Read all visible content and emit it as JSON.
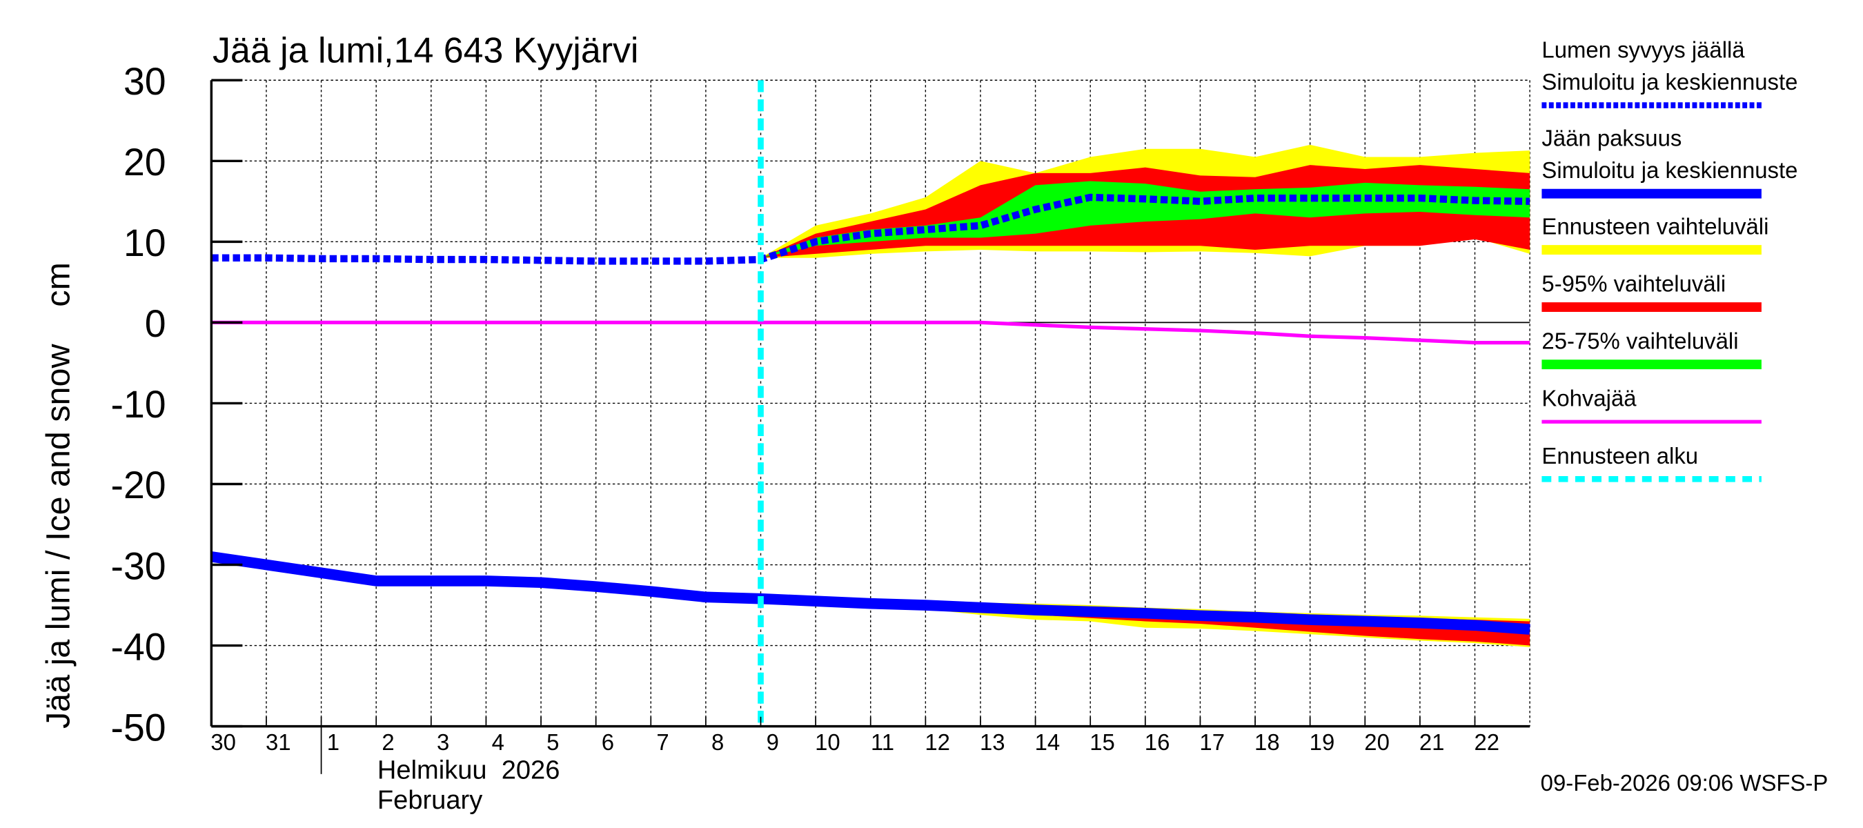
{
  "chart_data": {
    "type": "area",
    "title": "Jää ja lumi,14 643 Kyyjärvi",
    "ylabel": "Jää ja lumi / Ice and snow    cm",
    "xlabel_fi": "Helmikuu  2026",
    "xlabel_en": "February",
    "ylim": [
      -50,
      30
    ],
    "yticks": [
      "30",
      "20",
      "10",
      "0",
      "-10",
      "-20",
      "-30",
      "-40",
      "-50"
    ],
    "grid": true,
    "legend_position": "right",
    "x_dates": [
      "2026-01-30",
      "2026-01-31",
      "2026-02-01",
      "2026-02-02",
      "2026-02-03",
      "2026-02-04",
      "2026-02-05",
      "2026-02-06",
      "2026-02-07",
      "2026-02-08",
      "2026-02-09",
      "2026-02-10",
      "2026-02-11",
      "2026-02-12",
      "2026-02-13",
      "2026-02-14",
      "2026-02-15",
      "2026-02-16",
      "2026-02-17",
      "2026-02-18",
      "2026-02-19",
      "2026-02-20",
      "2026-02-21",
      "2026-02-22",
      "2026-02-23"
    ],
    "xtick_labels": [
      "30",
      "31",
      "1",
      "2",
      "3",
      "4",
      "5",
      "6",
      "7",
      "8",
      "9",
      "10",
      "11",
      "12",
      "13",
      "14",
      "15",
      "16",
      "17",
      "18",
      "19",
      "20",
      "21",
      "22"
    ],
    "forecast_start": "2026-02-09",
    "snow_depth": [
      8,
      8,
      7.9,
      7.9,
      7.8,
      7.8,
      7.7,
      7.6,
      7.6,
      7.6,
      7.8,
      10,
      11,
      11.5,
      12,
      14,
      15.5,
      15.3,
      15,
      15.4,
      15.4,
      15.4,
      15.4,
      15.1,
      15
    ],
    "snow_bands_from": "2026-02-09",
    "snow_bands": {
      "yellow_max": [
        8,
        12,
        13.5,
        15.5,
        20,
        18.5,
        20.5,
        21.5,
        21.5,
        20.5,
        22,
        20.5,
        20.5,
        21,
        21.3
      ],
      "red_max": [
        8,
        11,
        12.5,
        14,
        17,
        18.5,
        18.5,
        19.2,
        18.2,
        18,
        19.5,
        19,
        19.5,
        19,
        18.5
      ],
      "green_max": [
        8,
        10.5,
        11.5,
        12,
        13,
        17,
        17.5,
        17.2,
        16.2,
        16.5,
        16.7,
        17.3,
        17,
        16.8,
        16.5
      ],
      "green_min": [
        8,
        9.5,
        10,
        10.5,
        10.5,
        11,
        12,
        12.5,
        12.8,
        13.5,
        13,
        13.5,
        13.7,
        13.3,
        13
      ],
      "red_min": [
        8,
        8.5,
        9,
        9.5,
        9.5,
        9.5,
        9.5,
        9.5,
        9.5,
        9,
        9.5,
        9.5,
        9.5,
        10.3,
        9
      ],
      "yellow_min": [
        8,
        8,
        8.5,
        8.8,
        9,
        8.8,
        8.8,
        8.7,
        8.8,
        8.6,
        8.2,
        9.5,
        9.5,
        10.5,
        8.5
      ]
    },
    "ice_thickness": [
      -29,
      -30,
      -31,
      -32,
      -32,
      -32,
      -32.2,
      -32.7,
      -33.3,
      -34,
      -34.2,
      -34.5,
      -34.8,
      -35,
      -35.3,
      -35.6,
      -35.8,
      -36,
      -36.3,
      -36.5,
      -36.8,
      -37,
      -37.2,
      -37.5,
      -38
    ],
    "ice_bands_from": "2026-02-11",
    "ice_bands": {
      "yellow_max": [
        -34.7,
        -34.8,
        -34.7,
        -34.8,
        -35,
        -35.3,
        -35.5,
        -35.8,
        -36,
        -36.2,
        -36.3,
        -36.5,
        -36.7
      ],
      "red_max": [
        -34.8,
        -34.9,
        -35,
        -35.1,
        -35.3,
        -35.6,
        -35.8,
        -36,
        -36.3,
        -36.4,
        -36.6,
        -36.8,
        -37
      ],
      "red_min": [
        -34.9,
        -35.3,
        -35.8,
        -36.2,
        -36.6,
        -37,
        -37.3,
        -37.8,
        -38.3,
        -38.8,
        -39.2,
        -39.5,
        -40
      ],
      "yellow_min": [
        -35,
        -35.5,
        -36.2,
        -36.8,
        -37,
        -37.8,
        -37.9,
        -38.2,
        -38.6,
        -39,
        -39.4,
        -39.7,
        -40.2
      ]
    },
    "slush_ice": [
      0,
      0,
      0,
      0,
      0,
      0,
      0,
      0,
      0,
      0,
      0,
      0,
      0,
      0,
      0,
      -0.3,
      -0.6,
      -0.8,
      -1,
      -1.3,
      -1.7,
      -1.9,
      -2.2,
      -2.5,
      -2.5
    ],
    "legend": [
      {
        "label1": "Lumen syvyys jäällä",
        "label2": "Simuloitu ja keskiennuste",
        "color": "#0000ff",
        "style": "dotted"
      },
      {
        "label1": "Jään paksuus",
        "label2": "Simuloitu ja keskiennuste",
        "color": "#0000ff",
        "style": "solid"
      },
      {
        "label1": "Ennusteen vaihteluväli",
        "color": "#ffff00",
        "style": "band"
      },
      {
        "label1": "5-95% vaihteluväli",
        "color": "#ff0000",
        "style": "band"
      },
      {
        "label1": "25-75% vaihteluväli",
        "color": "#00ff00",
        "style": "band"
      },
      {
        "label1": "Kohvajää",
        "color": "#ff00ff",
        "style": "line"
      },
      {
        "label1": "Ennusteen alku",
        "color": "#00ffff",
        "style": "dashed"
      }
    ],
    "colors": {
      "snow": "#0000ff",
      "ice": "#0000ff",
      "range": "#ffff00",
      "p5_95": "#ff0000",
      "p25_75": "#00ff00",
      "slush": "#ff00ff",
      "forecast_start": "#00ffff"
    }
  },
  "footer": {
    "timestamp": "09-Feb-2026 09:06 WSFS-P"
  }
}
